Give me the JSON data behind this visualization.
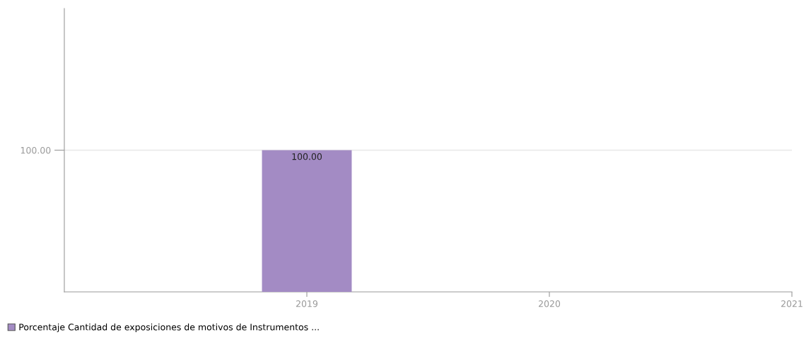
{
  "chart_data": {
    "type": "bar",
    "categories": [
      "2019",
      "2020",
      "2021"
    ],
    "series": [
      {
        "name": "Porcentaje Cantidad de exposiciones de motivos de Instrumentos ...",
        "color": "#a38bc4",
        "values": [
          100,
          null,
          null
        ],
        "value_labels": [
          "100.00",
          null,
          null
        ]
      }
    ],
    "ylim": [
      0,
      200
    ],
    "yticks": [
      {
        "value": 100,
        "label": "100.00"
      }
    ],
    "grid": "y",
    "legend": "bottom left"
  }
}
